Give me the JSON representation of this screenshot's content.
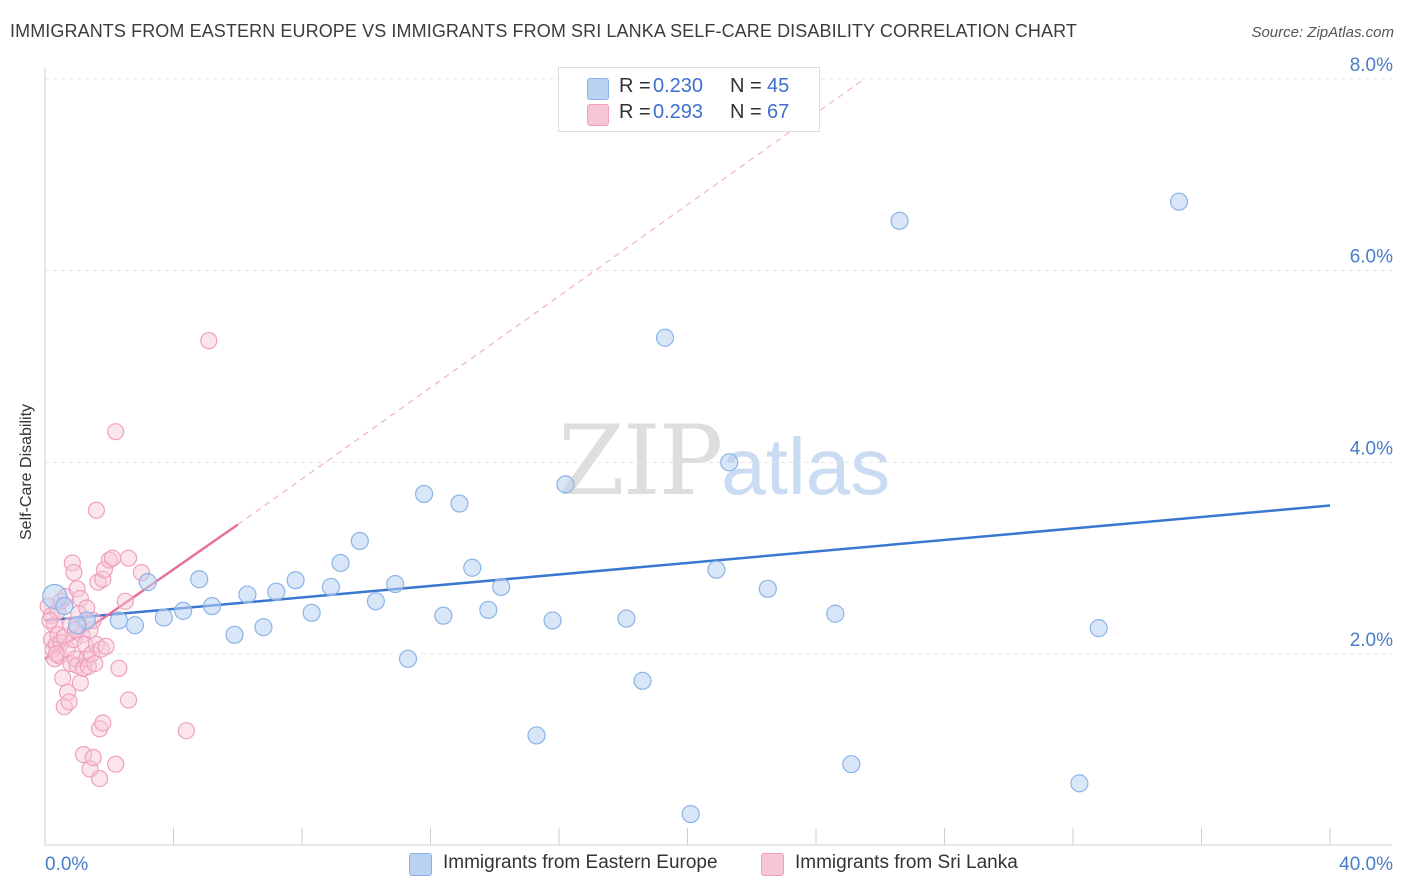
{
  "title": "IMMIGRANTS FROM EASTERN EUROPE VS IMMIGRANTS FROM SRI LANKA SELF-CARE DISABILITY CORRELATION CHART",
  "source": "Source: ZipAtlas.com",
  "watermark": {
    "zip": "ZIP",
    "atlas": "atlas"
  },
  "colors": {
    "blue": "#8ab4e8",
    "blue_fill": "#b9d2f2",
    "blue_line": "#3a78d0",
    "pink": "#f0a0bd",
    "pink_fill": "#f7c6d6",
    "pink_line": "#e8709a",
    "tick_text": "#4a7cc9"
  },
  "legend": {
    "rows": [
      {
        "r_label": "R =",
        "r_value": "0.230",
        "n_label": "N =",
        "n_value": "45"
      },
      {
        "r_label": "R =",
        "r_value": "0.293",
        "n_label": "N =",
        "n_value": "67"
      }
    ]
  },
  "bottom_legend": {
    "items": [
      {
        "label": "Immigrants from Eastern Europe"
      },
      {
        "label": "Immigrants from Sri Lanka"
      }
    ]
  },
  "chart_data": {
    "type": "scatter",
    "title": "IMMIGRANTS FROM EASTERN EUROPE VS IMMIGRANTS FROM SRI LANKA SELF-CARE DISABILITY CORRELATION CHART",
    "xlabel": "",
    "ylabel": "Self-Care Disability",
    "xlim": [
      0,
      40
    ],
    "ylim": [
      0,
      8.3
    ],
    "x_tick_labels": [
      {
        "value": 0,
        "label": "0.0%"
      },
      {
        "value": 40,
        "label": "40.0%"
      }
    ],
    "y_tick_labels": [
      {
        "value": 2,
        "label": "2.0%"
      },
      {
        "value": 4,
        "label": "4.0%"
      },
      {
        "value": 6,
        "label": "6.0%"
      },
      {
        "value": 8,
        "label": "8.0%"
      }
    ],
    "grid": true,
    "legend_position": "top-center",
    "series": [
      {
        "name": "Immigrants from Eastern Europe",
        "color": "#8ab4e8",
        "R": 0.23,
        "N": 45,
        "trend": {
          "x0": 0,
          "y0": 2.35,
          "x1": 40,
          "y1": 3.55
        },
        "points": [
          [
            0.3,
            2.6
          ],
          [
            1.3,
            2.35
          ],
          [
            2.3,
            2.35
          ],
          [
            3.2,
            2.75
          ],
          [
            2.8,
            2.3
          ],
          [
            3.7,
            2.38
          ],
          [
            4.3,
            2.45
          ],
          [
            4.8,
            2.78
          ],
          [
            5.2,
            2.5
          ],
          [
            5.9,
            2.2
          ],
          [
            6.3,
            2.62
          ],
          [
            6.8,
            2.28
          ],
          [
            7.2,
            2.65
          ],
          [
            7.8,
            2.77
          ],
          [
            8.3,
            2.43
          ],
          [
            8.9,
            2.7
          ],
          [
            9.2,
            2.95
          ],
          [
            9.8,
            3.18
          ],
          [
            10.3,
            2.55
          ],
          [
            10.9,
            2.73
          ],
          [
            11.3,
            1.95
          ],
          [
            11.8,
            3.67
          ],
          [
            12.4,
            2.4
          ],
          [
            12.9,
            3.57
          ],
          [
            13.3,
            2.9
          ],
          [
            13.8,
            2.46
          ],
          [
            14.2,
            2.7
          ],
          [
            15.3,
            1.15
          ],
          [
            15.8,
            2.35
          ],
          [
            16.2,
            3.77
          ],
          [
            18.1,
            2.37
          ],
          [
            18.6,
            1.72
          ],
          [
            19.3,
            5.3
          ],
          [
            20.1,
            0.33
          ],
          [
            20.9,
            2.88
          ],
          [
            21.3,
            4.0
          ],
          [
            22.5,
            2.68
          ],
          [
            24.6,
            2.42
          ],
          [
            25.1,
            0.85
          ],
          [
            26.6,
            6.52
          ],
          [
            32.2,
            0.65
          ],
          [
            32.8,
            2.27
          ],
          [
            35.3,
            6.72
          ],
          [
            1.0,
            2.3
          ],
          [
            0.6,
            2.5
          ]
        ]
      },
      {
        "name": "Immigrants from Sri Lanka",
        "color": "#f0a0bd",
        "R": 0.293,
        "N": 67,
        "trend": {
          "x0": 0,
          "y0": 1.95,
          "x1": 6.0,
          "y1": 3.35
        },
        "trend_extended": {
          "x0": 6.0,
          "y0": 3.35,
          "x1": 25.5,
          "y1": 8.0
        },
        "points": [
          [
            0.1,
            2.5
          ],
          [
            0.2,
            2.4
          ],
          [
            0.2,
            2.15
          ],
          [
            0.25,
            2.05
          ],
          [
            0.3,
            2.3
          ],
          [
            0.3,
            1.95
          ],
          [
            0.35,
            2.1
          ],
          [
            0.4,
            2.2
          ],
          [
            0.4,
            2.45
          ],
          [
            0.45,
            1.98
          ],
          [
            0.5,
            2.12
          ],
          [
            0.5,
            2.55
          ],
          [
            0.55,
            1.75
          ],
          [
            0.6,
            1.45
          ],
          [
            0.6,
            2.18
          ],
          [
            0.65,
            2.6
          ],
          [
            0.7,
            1.6
          ],
          [
            0.7,
            2.05
          ],
          [
            0.75,
            1.5
          ],
          [
            0.8,
            2.3
          ],
          [
            0.8,
            1.9
          ],
          [
            0.85,
            2.95
          ],
          [
            0.9,
            2.15
          ],
          [
            0.9,
            2.85
          ],
          [
            0.95,
            1.95
          ],
          [
            1.0,
            2.68
          ],
          [
            1.0,
            1.88
          ],
          [
            1.05,
            2.42
          ],
          [
            1.1,
            1.7
          ],
          [
            1.1,
            2.58
          ],
          [
            1.15,
            2.2
          ],
          [
            1.2,
            1.85
          ],
          [
            1.2,
            0.95
          ],
          [
            1.25,
            2.1
          ],
          [
            1.3,
            1.95
          ],
          [
            1.3,
            2.48
          ],
          [
            1.35,
            1.87
          ],
          [
            1.4,
            2.25
          ],
          [
            1.4,
            0.8
          ],
          [
            1.45,
            2.0
          ],
          [
            1.5,
            2.35
          ],
          [
            1.5,
            0.92
          ],
          [
            1.55,
            1.9
          ],
          [
            1.6,
            2.1
          ],
          [
            1.6,
            3.5
          ],
          [
            1.65,
            2.75
          ],
          [
            1.7,
            0.7
          ],
          [
            1.7,
            1.22
          ],
          [
            1.75,
            2.05
          ],
          [
            1.8,
            2.78
          ],
          [
            1.8,
            1.28
          ],
          [
            1.85,
            2.88
          ],
          [
            1.9,
            2.08
          ],
          [
            2.0,
            2.98
          ],
          [
            2.1,
            3.0
          ],
          [
            2.2,
            0.85
          ],
          [
            2.3,
            1.85
          ],
          [
            2.2,
            4.32
          ],
          [
            2.5,
            2.55
          ],
          [
            2.6,
            3.0
          ],
          [
            2.6,
            1.52
          ],
          [
            3.0,
            2.85
          ],
          [
            4.4,
            1.2
          ],
          [
            5.1,
            5.27
          ],
          [
            0.15,
            2.35
          ],
          [
            0.35,
            2.0
          ],
          [
            0.95,
            2.25
          ]
        ]
      }
    ]
  }
}
